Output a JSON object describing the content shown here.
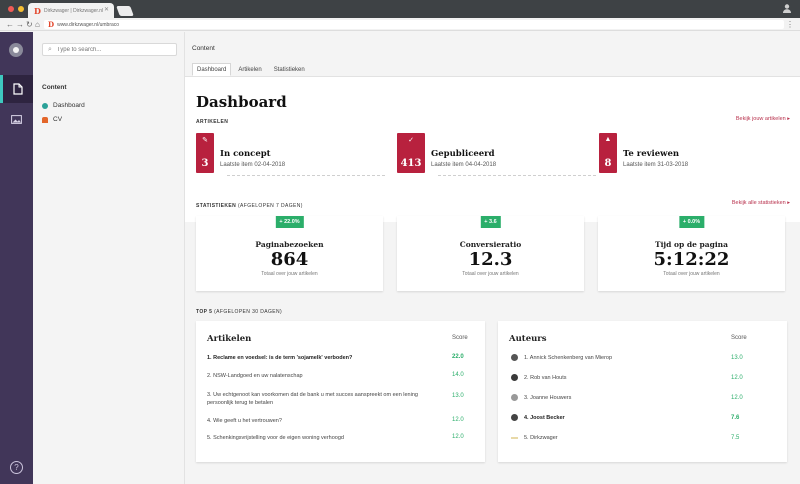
{
  "browser": {
    "tab_title": "Dirkzwager | Dirkzwager.nl",
    "url": "www.dirkzwager.nl/umbraco",
    "colors": {
      "chrome_dark": "#3e4245",
      "dot_red": "#ef5b56",
      "dot_yellow": "#f6be33",
      "dot_green": "#5ac840"
    }
  },
  "appbar": {
    "icons": [
      "user-avatar-icon",
      "document-icon",
      "image-icon",
      "help-icon"
    ],
    "help_glyph": "?",
    "accent": "#3ec8bf"
  },
  "tree": {
    "search_placeholder": "Type to search...",
    "root_label": "Content",
    "nodes": [
      {
        "label": "Dashboard",
        "icon": "globe-icon",
        "color": "#2aa198"
      },
      {
        "label": "CV",
        "icon": "person-icon",
        "color": "#e3662a"
      }
    ]
  },
  "main": {
    "breadcrumb": "Content",
    "tabs": [
      "Dashboard",
      "Artikelen",
      "Statistieken"
    ],
    "title": "Dashboard",
    "articles_section": {
      "label": "ARTIKELEN",
      "link": "Bekijk jouw artikelen",
      "items": [
        {
          "count": "3",
          "title": "In concept",
          "sub": "Laatste item 02-04-2018",
          "icon": "pencil-icon"
        },
        {
          "count": "413",
          "title": "Gepubliceerd",
          "sub": "Laatste item 04-04-2018",
          "icon": "check-icon"
        },
        {
          "count": "8",
          "title": "Te reviewen",
          "sub": "Laatste item 31-03-2018",
          "icon": "warning-icon"
        }
      ]
    },
    "stats_section": {
      "label": "STATISTIEKEN",
      "label_sub": "(AFGELOPEN 7 DAGEN)",
      "link": "Bekijk alle statistieken",
      "cards": [
        {
          "change": "+ 22.0%",
          "name": "Paginabezoeken",
          "value": "864",
          "sub": "Totaal over jouw artikelen"
        },
        {
          "change": "+ 3.6",
          "name": "Conversieratio",
          "value": "12.3",
          "sub": "Totaal over jouw artikelen"
        },
        {
          "change": "+ 0.0%",
          "name": "Tijd op de pagina",
          "value": "5:12:22",
          "sub": "Totaal over jouw artikelen"
        }
      ]
    },
    "top5_section": {
      "label": "TOP 5",
      "label_sub": "(AFGELOPEN 30 DAGEN)",
      "articles": {
        "heading": "Artikelen",
        "score_header": "Score",
        "rows": [
          {
            "text": "1. Reclame en voedsel: is de term 'sojamelk' verboden?",
            "score": "22.0"
          },
          {
            "text": "2. NSW-Landgoed en uw nalatenschap",
            "score": "14.0"
          },
          {
            "text": "3. Uw echtgenoot kan voorkomen dat de bank u met succes aanspreekt om een lening persoonlijk terug te betalen",
            "score": "13.0"
          },
          {
            "text": "4. Wie geeft u het vertrouwen?",
            "score": "12.0"
          },
          {
            "text": "5. Schenkingsvrijstelling voor de eigen woning verhoogd",
            "score": "12.0"
          }
        ]
      },
      "authors": {
        "heading": "Auteurs",
        "score_header": "Score",
        "rows": [
          {
            "text": "1. Annick Schenkenberg van Mierop",
            "score": "13.0"
          },
          {
            "text": "2. Rob van Houts",
            "score": "12.0"
          },
          {
            "text": "3. Joanne Houwers",
            "score": "12.0"
          },
          {
            "text": "4. Joost Becker",
            "score": "7.6"
          },
          {
            "text": "5. Dirkzwager",
            "score": "7.5"
          }
        ]
      }
    },
    "colors": {
      "badge": "#b8213e",
      "positive": "#2bae6a",
      "link": "#b8324d"
    }
  }
}
